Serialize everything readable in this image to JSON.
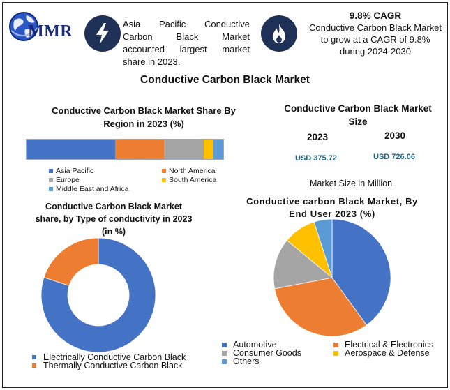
{
  "header": {
    "logo_text": "MMR",
    "headline": "Asia Pacific Conductive Carbon Black Market accounted largest market share in 2023.",
    "cagr_title": "9.8% CAGR",
    "cagr_text": "Conductive Carbon Black Market to grow at a CAGR of 9.8% during 2024-2030",
    "icons": [
      "globe-logo-icon",
      "lightning-bolt-icon",
      "flame-icon"
    ]
  },
  "main_title": "Conductive Carbon Black Market",
  "market_size": {
    "title": "Conductive Carbon Black Market Size",
    "year_a": "2023",
    "year_b": "2030",
    "value_a": "USD 375.72",
    "value_b": "USD 726.06",
    "unit_note": "Market Size in Million"
  },
  "colors": {
    "blue": "#4472c4",
    "orange": "#ed7d31",
    "gray": "#a5a5a5",
    "yellow": "#ffc000",
    "lightblue": "#5b9bd5",
    "navy": "#1f3157"
  },
  "chart_data": [
    {
      "id": "region",
      "type": "bar",
      "stacked": true,
      "orientation": "horizontal",
      "title": "Conductive Carbon Black Market Share By Region in 2023 (%)",
      "series": [
        {
          "name": "Asia Pacific",
          "values": [
            45
          ]
        },
        {
          "name": "North America",
          "values": [
            25
          ]
        },
        {
          "name": "Europe",
          "values": [
            20
          ]
        },
        {
          "name": "South America",
          "values": [
            5
          ]
        },
        {
          "name": "Middle East and Africa",
          "values": [
            5
          ]
        }
      ],
      "legend": "bottom"
    },
    {
      "id": "conductivity",
      "type": "pie",
      "donut": true,
      "title": "Conductive Carbon Black Market share, by Type of conductivity in 2023 (in %)",
      "labels": [
        "Electrically Conductive Carbon Black",
        "Thermally Conductive Carbon Black"
      ],
      "values": [
        80,
        20
      ],
      "legend": "bottom"
    },
    {
      "id": "enduser",
      "type": "pie",
      "title": "Conductive carbon Black Market, By End User 2023 (%)",
      "labels": [
        "Automotive",
        "Electrical & Electronics",
        "Consumer Goods",
        "Aerospace & Defense",
        "Others"
      ],
      "values": [
        40,
        32,
        14,
        9,
        5
      ],
      "legend": "bottom"
    }
  ]
}
